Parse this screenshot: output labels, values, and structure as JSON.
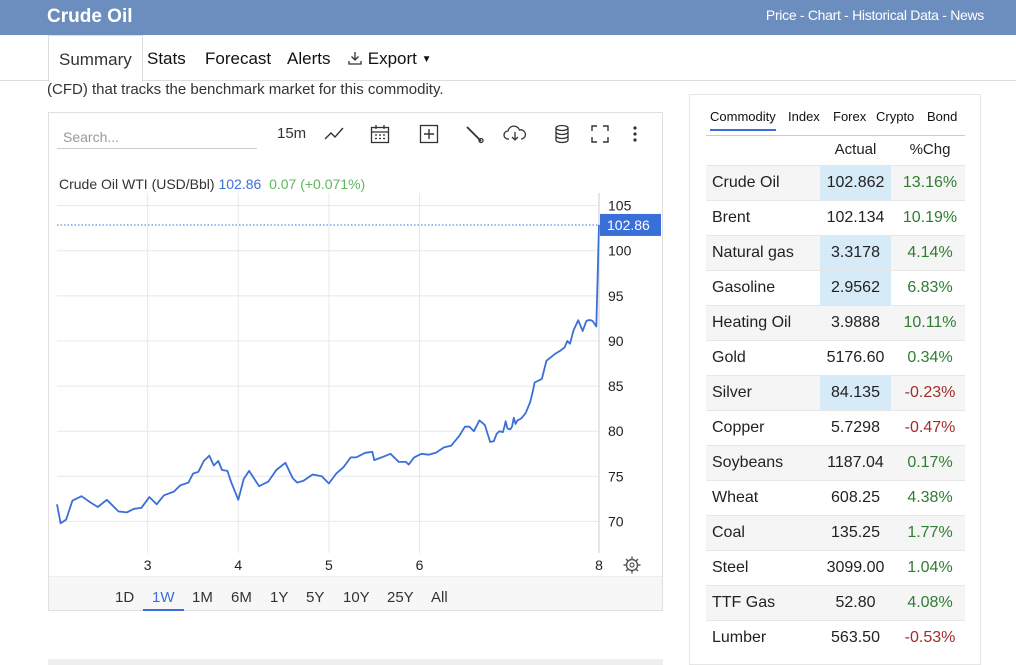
{
  "header": {
    "brand": "Crude Oil",
    "links": "Price - Chart - Historical Data - News"
  },
  "nav": {
    "tabs": [
      "Summary",
      "Stats",
      "Forecast",
      "Alerts",
      "Export"
    ]
  },
  "description": "(CFD) that tracks the benchmark market for this commodity.",
  "chart_toolbar": {
    "search_placeholder": "Search...",
    "interval": "15m"
  },
  "legend": {
    "name": "Crude Oil WTI (USD/Bbl)",
    "value": "102.86",
    "change": "0.07 (+0.071%)"
  },
  "price_tag": "102.86",
  "ranges": [
    "1D",
    "1W",
    "1M",
    "6M",
    "1Y",
    "5Y",
    "10Y",
    "25Y",
    "All"
  ],
  "active_range": "1W",
  "chart_data": {
    "type": "line",
    "x_ticks": [
      "3",
      "4",
      "5",
      "6",
      "8"
    ],
    "y_ticks": [
      70,
      75,
      80,
      85,
      90,
      95,
      100,
      105
    ],
    "ylim": [
      66.5,
      106.4
    ],
    "xlim": [
      2.0,
      7.98
    ],
    "last_value": 102.86,
    "series": [
      {
        "x": [
          2.0,
          2.04,
          2.1,
          2.17,
          2.27,
          2.37,
          2.45,
          2.55,
          2.68,
          2.77,
          2.85,
          2.93,
          3.02,
          3.1,
          3.18,
          3.29,
          3.36,
          3.45,
          3.5,
          3.56,
          3.62,
          3.68,
          3.73,
          3.78,
          3.82,
          3.88,
          3.92,
          4.0,
          4.06,
          4.12,
          4.23,
          4.33,
          4.42,
          4.52,
          4.6,
          4.65,
          4.72,
          4.82,
          4.92,
          5.0,
          5.08,
          5.16,
          5.24,
          5.3,
          5.4,
          5.48,
          5.5,
          5.58,
          5.68,
          5.77,
          5.85,
          5.88,
          5.94,
          6.02,
          6.1,
          6.18,
          6.27,
          6.35,
          6.44,
          6.5,
          6.55,
          6.6,
          6.66,
          6.72,
          6.78,
          6.82,
          6.85,
          6.88,
          6.92,
          6.94,
          6.95,
          6.97,
          7.0,
          7.02,
          7.04,
          7.06,
          7.08,
          7.12,
          7.17,
          7.22,
          7.25,
          7.27,
          7.35,
          7.4,
          7.5,
          7.55,
          7.6,
          7.63,
          7.66,
          7.7,
          7.75,
          7.8,
          7.84,
          7.86,
          7.89,
          7.91,
          7.93,
          7.95,
          7.98
        ],
        "y": [
          71.9,
          69.8,
          70.2,
          72.3,
          72.8,
          72.1,
          71.6,
          72.4,
          71.1,
          71.0,
          71.4,
          71.5,
          72.7,
          71.9,
          72.9,
          73.3,
          74.0,
          74.3,
          75.3,
          75.5,
          76.7,
          77.3,
          76.2,
          76.7,
          75.7,
          75.6,
          74.4,
          72.4,
          74.7,
          75.6,
          73.9,
          74.4,
          75.7,
          76.5,
          74.8,
          74.3,
          74.5,
          75.2,
          75.0,
          74.2,
          75.3,
          76.0,
          77.1,
          77.1,
          77.6,
          77.7,
          76.8,
          77.1,
          77.5,
          76.6,
          76.6,
          76.3,
          77.1,
          77.5,
          77.4,
          77.6,
          78.2,
          78.4,
          79.5,
          80.5,
          80.5,
          80.0,
          81.2,
          80.7,
          78.8,
          78.9,
          79.7,
          80.0,
          79.9,
          80.6,
          81.1,
          80.3,
          80.2,
          80.5,
          81.5,
          80.8,
          81.2,
          81.4,
          82.0,
          83.2,
          84.4,
          85.4,
          85.8,
          87.8,
          88.6,
          88.9,
          89.3,
          90.0,
          89.7,
          91.2,
          92.3,
          91.1,
          92.2,
          92.3,
          92.3,
          92.2,
          91.9,
          91.6,
          102.86
        ]
      }
    ]
  },
  "sidebar": {
    "tabs": [
      "Commodity",
      "Index",
      "Forex",
      "Crypto",
      "Bond"
    ],
    "active_tab": "Commodity",
    "columns": [
      "Actual",
      "%Chg"
    ],
    "rows": [
      {
        "name": "Crude Oil",
        "actual": "102.862",
        "chg": "13.16%"
      },
      {
        "name": "Brent",
        "actual": "102.134",
        "chg": "10.19%"
      },
      {
        "name": "Natural gas",
        "actual": "3.3178",
        "chg": "4.14%"
      },
      {
        "name": "Gasoline",
        "actual": "2.9562",
        "chg": "6.83%"
      },
      {
        "name": "Heating Oil",
        "actual": "3.9888",
        "chg": "10.11%"
      },
      {
        "name": "Gold",
        "actual": "5176.60",
        "chg": "0.34%"
      },
      {
        "name": "Silver",
        "actual": "84.135",
        "chg": "-0.23%"
      },
      {
        "name": "Copper",
        "actual": "5.7298",
        "chg": "-0.47%"
      },
      {
        "name": "Soybeans",
        "actual": "1187.04",
        "chg": "0.17%"
      },
      {
        "name": "Wheat",
        "actual": "608.25",
        "chg": "4.38%"
      },
      {
        "name": "Coal",
        "actual": "135.25",
        "chg": "1.77%"
      },
      {
        "name": "Steel",
        "actual": "3099.00",
        "chg": "1.04%"
      },
      {
        "name": "TTF Gas",
        "actual": "52.80",
        "chg": "4.08%"
      },
      {
        "name": "Lumber",
        "actual": "563.50",
        "chg": "-0.53%"
      }
    ],
    "highlighted": [
      "Crude Oil",
      "Natural gas",
      "Gasoline",
      "Silver"
    ]
  },
  "colors": {
    "accent": "#3a6fd8",
    "header_bg": "#6c8ebf",
    "positive": "#2e7d32",
    "negative": "#a52a2a"
  }
}
